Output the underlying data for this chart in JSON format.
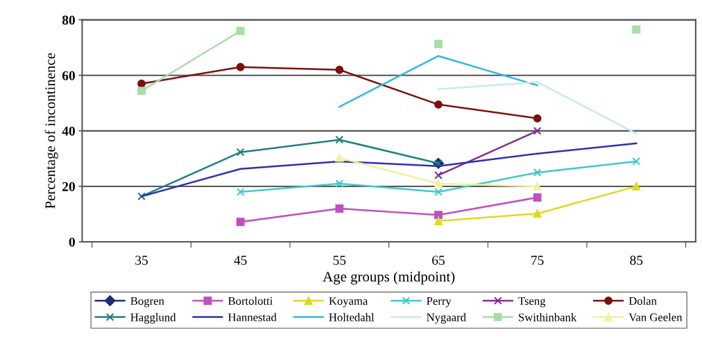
{
  "chart_data": {
    "type": "line",
    "xlabel": "Age groups (midpoint)",
    "ylabel": "Percentage of incontinence",
    "categories": [
      "35",
      "45",
      "55",
      "65",
      "75",
      "85"
    ],
    "ylim": [
      0,
      80
    ],
    "yticks": [
      0,
      20,
      40,
      60,
      80
    ],
    "grid": "y",
    "legend": "bottom",
    "series": [
      {
        "name": "Bogren",
        "color": "#1f2a7a",
        "marker": "diamond",
        "values": [
          null,
          null,
          null,
          28.3,
          null,
          null
        ]
      },
      {
        "name": "Bortolotti",
        "color": "#c050c0",
        "marker": "square",
        "values": [
          null,
          7.2,
          12,
          9.7,
          16,
          null
        ]
      },
      {
        "name": "Koyama",
        "color": "#e0d820",
        "marker": "triangle",
        "values": [
          null,
          null,
          null,
          7.5,
          10.2,
          20
        ]
      },
      {
        "name": "Perry",
        "color": "#40c8d0",
        "marker": "cross",
        "values": [
          null,
          18,
          21,
          18,
          25,
          29
        ]
      },
      {
        "name": "Tseng",
        "color": "#803090",
        "marker": "cross",
        "values": [
          null,
          null,
          null,
          24,
          40,
          null
        ]
      },
      {
        "name": "Dolan",
        "color": "#7a1010",
        "marker": "circle",
        "values": [
          57,
          63,
          62,
          49.5,
          44.5,
          null
        ]
      },
      {
        "name": "Hagglund",
        "color": "#208080",
        "marker": "cross",
        "values": [
          16.4,
          32.3,
          36.8,
          28.3,
          null,
          null
        ]
      },
      {
        "name": "Hannestad",
        "color": "#3030b0",
        "marker": "none",
        "values": [
          16.4,
          26.3,
          29,
          27.3,
          31.8,
          35.5
        ]
      },
      {
        "name": "Holtedahl",
        "color": "#30b8e0",
        "marker": "none",
        "values": [
          null,
          null,
          48.7,
          67,
          56.4,
          null
        ]
      },
      {
        "name": "Nygaard",
        "color": "#c8e8f0",
        "marker": "none",
        "values": [
          null,
          null,
          null,
          55,
          57.6,
          39
        ]
      },
      {
        "name": "Swithinbank",
        "color": "#a8dca8",
        "marker": "square",
        "values": [
          54.4,
          76,
          null,
          71.3,
          null,
          76.5
        ]
      },
      {
        "name": "Van Geelen",
        "color": "#f0f0a0",
        "marker": "triangle",
        "values": [
          null,
          null,
          30.3,
          21,
          20,
          null
        ]
      }
    ]
  }
}
